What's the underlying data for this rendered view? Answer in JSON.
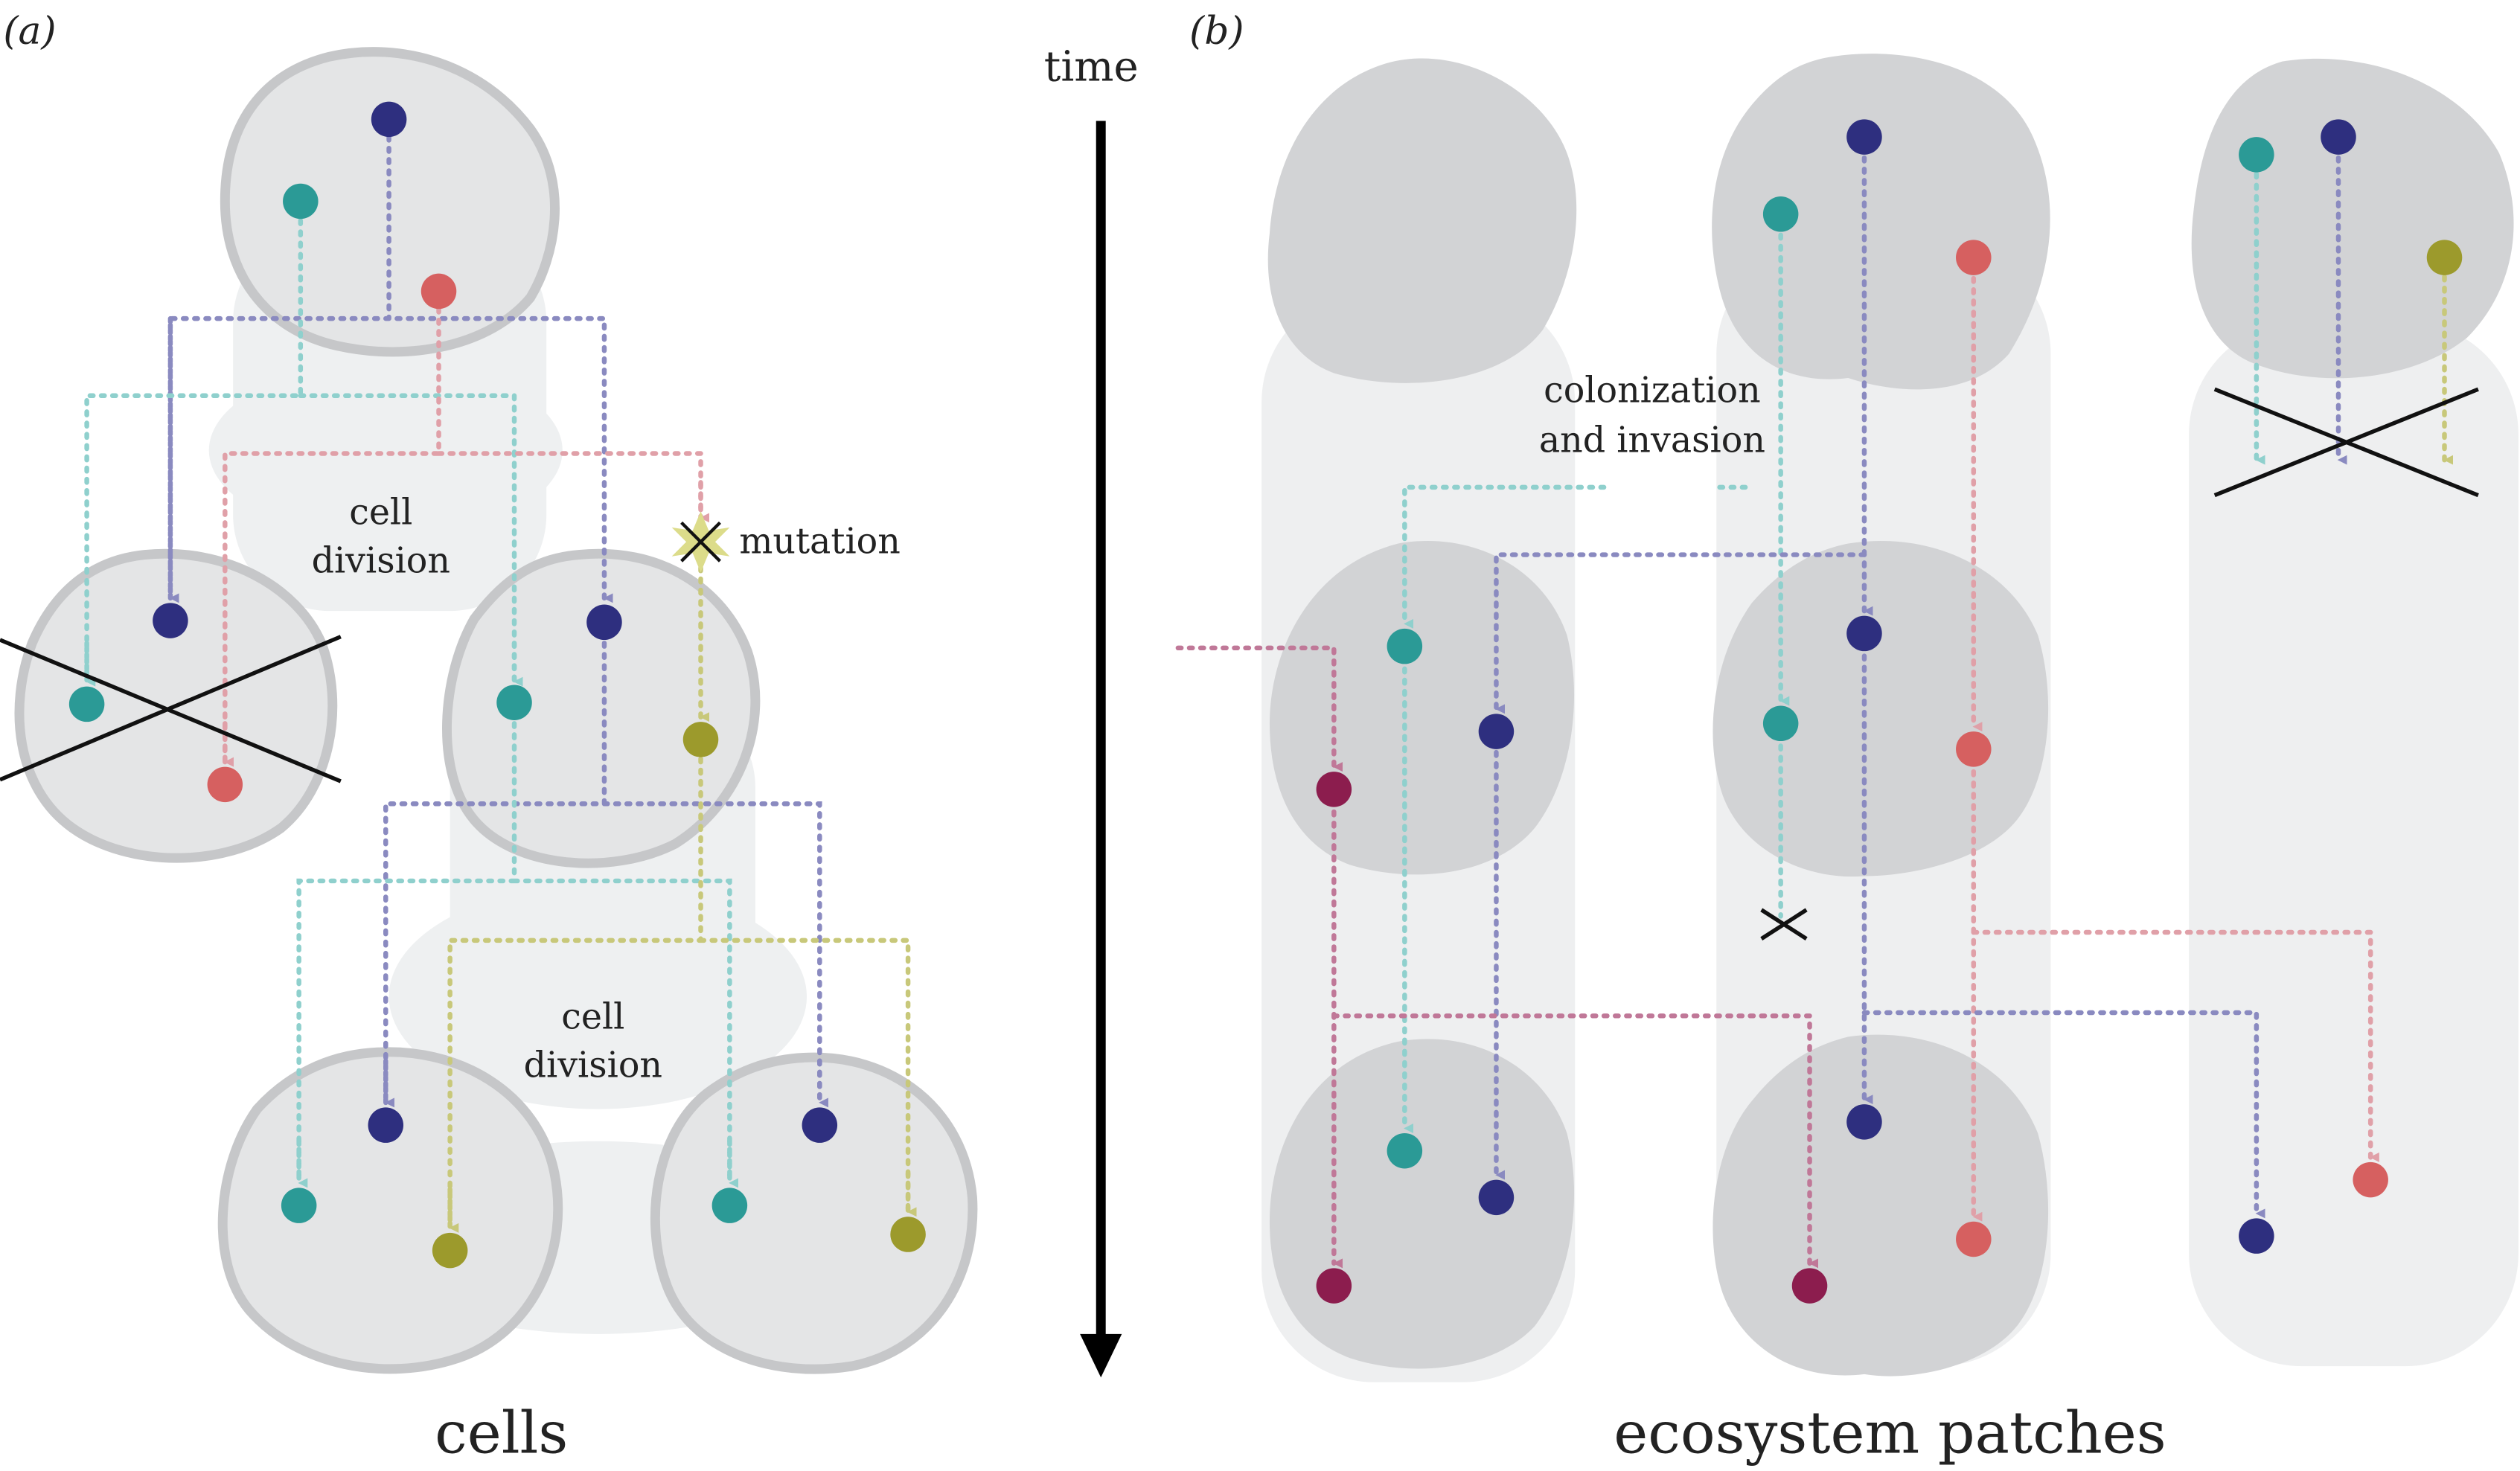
{
  "panel_a": {
    "tag": "(a)",
    "caption": "cells",
    "labels": {
      "division_top": [
        "cell",
        "division"
      ],
      "division_bottom": [
        "cell",
        "division"
      ],
      "mutation": "mutation"
    }
  },
  "time_axis": {
    "label": "time"
  },
  "panel_b": {
    "tag": "(b)",
    "caption": "ecosystem patches",
    "labels": {
      "colonization": [
        "colonization",
        "and invasion"
      ]
    }
  },
  "colors": {
    "navy": "#2e2f7f",
    "teal": "#2b9a96",
    "coral": "#d66060",
    "olive": "#9c9a2c",
    "maroon": "#8c1d4e",
    "blob": "#d2d3d5",
    "ghost": "#eeeff0"
  }
}
